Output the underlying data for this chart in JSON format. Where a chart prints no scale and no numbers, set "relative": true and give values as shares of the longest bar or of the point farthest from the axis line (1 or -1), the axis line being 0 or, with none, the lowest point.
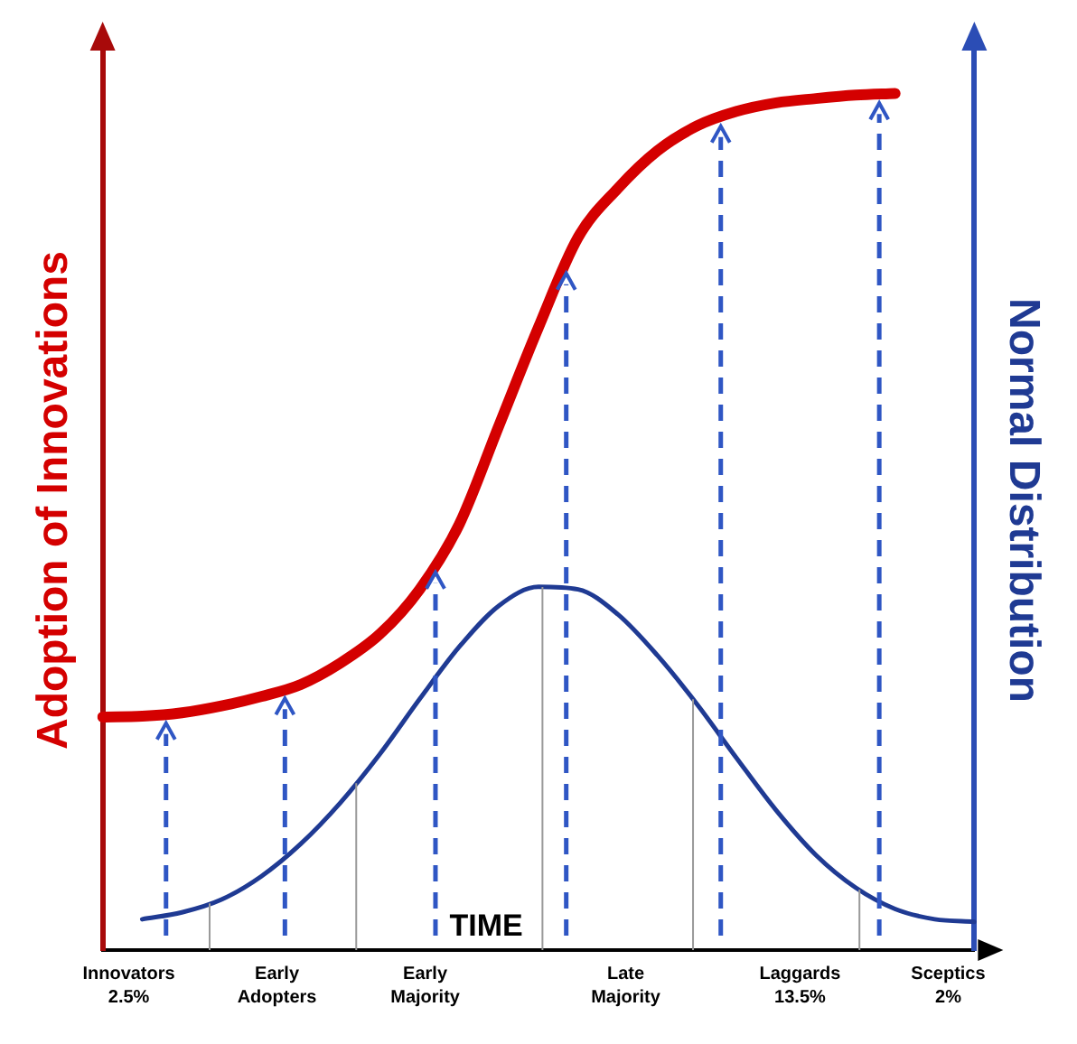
{
  "chart_data": {
    "type": "line",
    "relative": true,
    "xlabel": "TIME",
    "ylabel": "Adoption of Innovations",
    "y2label": "Normal Distribution",
    "grid": false,
    "marker": "none",
    "legend": false,
    "categories": [
      null,
      null,
      null,
      null,
      null,
      null,
      null,
      null,
      null,
      null,
      null,
      null,
      null,
      null,
      null,
      null,
      null,
      null,
      null,
      null,
      null,
      null,
      null
    ],
    "series": [
      {
        "color": "#d40000",
        "values": [
          0.272,
          0.273,
          0.277,
          0.285,
          0.296,
          0.31,
          0.335,
          0.369,
          0.421,
          0.497,
          0.612,
          0.727,
          0.832,
          0.889,
          0.933,
          0.962,
          0.979,
          0.989,
          0.994,
          0.998,
          1,
          null,
          null
        ]
      },
      {
        "color": "#1f3a93",
        "values": [
          null,
          0.036,
          0.044,
          0.059,
          0.086,
          0.124,
          0.172,
          0.229,
          0.293,
          0.354,
          0.402,
          0.424,
          0.421,
          0.392,
          0.344,
          0.287,
          0.224,
          0.163,
          0.111,
          0.073,
          0.048,
          0.036,
          0.033
        ]
      }
    ],
    "annotations": [
      "Innovators\n2.5%",
      "Early\nAdopters",
      "Early\nMajority",
      "Late\nMajority",
      "Laggards\n13.5%",
      "Sceptics\n2%"
    ]
  }
}
